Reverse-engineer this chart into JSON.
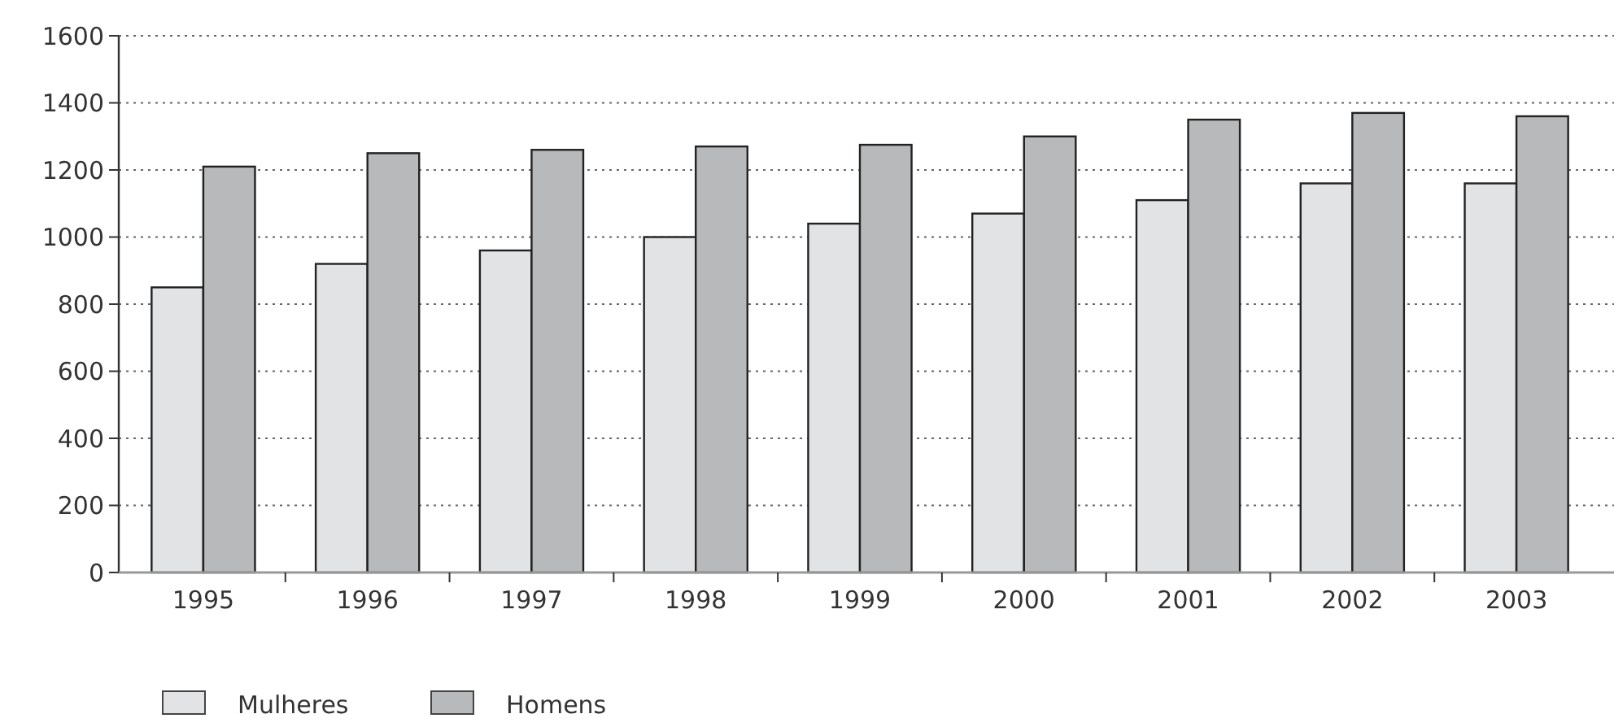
{
  "chart_data": {
    "type": "bar",
    "categories": [
      "1995",
      "1996",
      "1997",
      "1998",
      "1999",
      "2000",
      "2001",
      "2002",
      "2003"
    ],
    "series": [
      {
        "name": "Mulheres",
        "color": "#e2e3e5",
        "values": [
          850,
          920,
          960,
          1000,
          1040,
          1070,
          1110,
          1160,
          1160
        ]
      },
      {
        "name": "Homens",
        "color": "#b8b9bb",
        "values": [
          1210,
          1250,
          1260,
          1270,
          1275,
          1300,
          1350,
          1370,
          1360
        ]
      }
    ],
    "ylim": [
      0,
      1600
    ],
    "yticks": [
      0,
      200,
      400,
      600,
      800,
      1000,
      1200,
      1400,
      1600
    ],
    "grid": "y",
    "legend": "bottom left"
  }
}
